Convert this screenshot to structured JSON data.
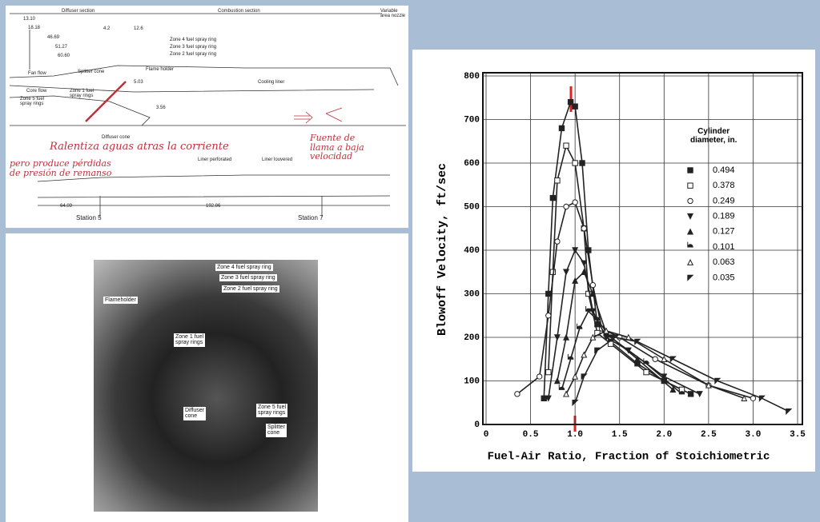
{
  "diagram": {
    "top_labels": [
      "Diffuser section",
      "Combustion section",
      "Variable area nozzle"
    ],
    "dimensions": [
      "13.10",
      "18.18",
      "46.69",
      "51.27",
      "60.60",
      "4.2",
      "12.6",
      "5.03",
      "3.56"
    ],
    "parts": [
      "Zone 4 fuel spray ring",
      "Zone 3 fuel spray ring",
      "Zone 2 fuel spray ring",
      "Flame holder",
      "Splitter cone",
      "Fan flow",
      "Core flow",
      "Zone 1 fuel\nspray rings",
      "Zone 5 fuel\nspray rings",
      "Cooling liner",
      "Diffuser cone"
    ],
    "notes": [
      "Ralentiza aguas atras la corriente",
      "pero produce pérdidas\nde presión de remanso",
      "Fuente de\nllama a baja velocidad"
    ],
    "lower": [
      "Liner perforated",
      "Liner louvered",
      "64.09",
      "192.86",
      "Station 5",
      "Station 7"
    ]
  },
  "photo": {
    "labels": [
      "Zone 4 fuel spray ring",
      "Zone 3 fuel spray ring",
      "Zone 2 fuel spray ring",
      "Flameholder",
      "Zone 1 fuel\nspray rings",
      "Diffuser\ncone",
      "Zone 5 fuel\nspray rings",
      "Splitter\ncone"
    ]
  },
  "chart_data": {
    "type": "scatter-line",
    "y_label": "Blowoff Velocity, ft/sec",
    "x_label": "Fuel-Air Ratio, Fraction of Stoichiometric",
    "legend_title": "Cylinder\ndiameter, in.",
    "grid": true,
    "xlim": [
      0,
      3.5
    ],
    "ylim": [
      0,
      800
    ],
    "xticks": [
      0,
      0.5,
      {
        "value": 1,
        "label": "1.0"
      },
      1.5,
      {
        "value": 2,
        "label": "2.0"
      },
      2.5,
      {
        "value": 3,
        "label": "3.0"
      },
      3.5
    ],
    "yticks": [
      0,
      100,
      200,
      300,
      400,
      500,
      600,
      700,
      800
    ],
    "series": [
      {
        "name": "0.494",
        "marker": "square",
        "color": "#222",
        "x": [
          0.65,
          0.7,
          0.75,
          0.85,
          0.95,
          1.0,
          1.08,
          1.15,
          1.25,
          1.4,
          1.7,
          2.0,
          2.3
        ],
        "values": [
          60,
          300,
          520,
          680,
          740,
          730,
          600,
          400,
          230,
          190,
          140,
          100,
          70
        ]
      },
      {
        "name": "0.378",
        "marker": "open-square",
        "color": "#222",
        "x": [
          0.7,
          0.75,
          0.8,
          0.9,
          1.0,
          1.1,
          1.15,
          1.25,
          1.4,
          1.8,
          2.2
        ],
        "values": [
          120,
          350,
          560,
          640,
          600,
          450,
          300,
          210,
          185,
          120,
          80
        ]
      },
      {
        "name": "0.249",
        "marker": "circle",
        "color": "#222",
        "x": [
          0.35,
          0.6,
          0.7,
          0.8,
          0.9,
          1.0,
          1.1,
          1.2,
          1.3,
          1.5,
          1.9,
          2.5,
          3.0
        ],
        "values": [
          70,
          110,
          250,
          420,
          500,
          510,
          450,
          320,
          220,
          200,
          150,
          90,
          60
        ]
      },
      {
        "name": "0.189",
        "marker": "down-triangle",
        "color": "#222",
        "x": [
          0.7,
          0.8,
          0.9,
          1.0,
          1.1,
          1.2,
          1.35,
          1.6,
          2.0,
          2.4
        ],
        "values": [
          60,
          200,
          350,
          400,
          370,
          260,
          200,
          170,
          110,
          70
        ]
      },
      {
        "name": "0.127",
        "marker": "up-triangle",
        "color": "#222",
        "x": [
          0.8,
          0.9,
          1.0,
          1.1,
          1.2,
          1.35,
          1.7,
          2.1
        ],
        "values": [
          100,
          200,
          330,
          350,
          300,
          210,
          150,
          80
        ]
      },
      {
        "name": "0.101",
        "marker": "half-circle",
        "color": "#222",
        "x": [
          0.85,
          0.95,
          1.05,
          1.15,
          1.25,
          1.4,
          1.8,
          2.2
        ],
        "values": [
          80,
          150,
          220,
          260,
          240,
          200,
          140,
          70
        ]
      },
      {
        "name": "0.063",
        "marker": "open-triangle",
        "color": "#222",
        "x": [
          0.9,
          1.0,
          1.1,
          1.2,
          1.35,
          1.6,
          2.0,
          2.5,
          2.9
        ],
        "values": [
          70,
          110,
          160,
          200,
          215,
          200,
          150,
          90,
          60
        ]
      },
      {
        "name": "0.035",
        "marker": "flag-triangle",
        "color": "#222",
        "x": [
          1.0,
          1.1,
          1.25,
          1.45,
          1.7,
          2.1,
          2.6,
          3.1,
          3.4
        ],
        "values": [
          50,
          110,
          170,
          200,
          190,
          150,
          100,
          60,
          30
        ]
      }
    ]
  }
}
